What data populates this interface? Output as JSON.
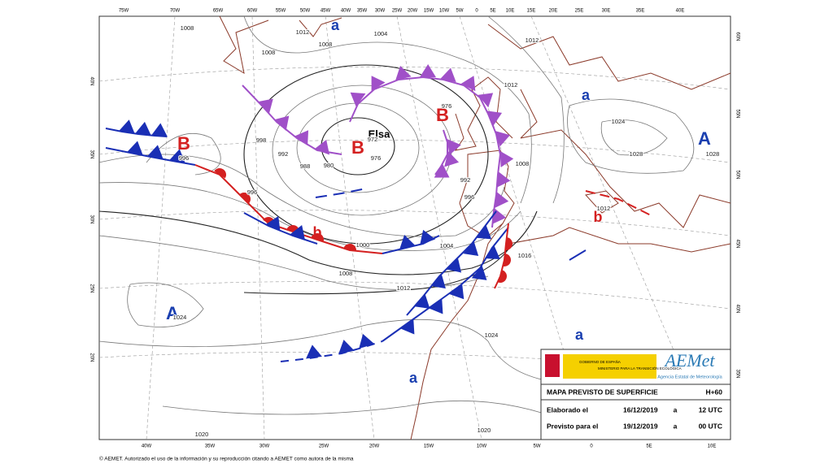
{
  "map": {
    "pressure_centers": [
      "B",
      "B",
      "B",
      "b",
      "b",
      "A",
      "A",
      "a",
      "a",
      "a",
      "a"
    ],
    "storm_name": "Elsa",
    "isobar_labels": [
      "1008",
      "1012",
      "1004",
      "1008",
      "1008",
      "1012",
      "1012",
      "1024",
      "1028",
      "1028",
      "998",
      "992",
      "988",
      "980",
      "976",
      "972",
      "996",
      "996",
      "996",
      "992",
      "1000",
      "1004",
      "1008",
      "1012",
      "1016",
      "1012",
      "1024",
      "1024",
      "1020",
      "1020",
      "976",
      "1008"
    ],
    "longitude_labels_top": [
      "75W",
      "70W",
      "65W",
      "60W",
      "55W",
      "50W",
      "45W",
      "40W",
      "35W",
      "30W",
      "25W",
      "20W",
      "15W",
      "10W",
      "5W",
      "0",
      "5E",
      "10E",
      "15E",
      "20E",
      "25E",
      "30E",
      "35E",
      "40E"
    ],
    "longitude_labels_bottom": [
      "40W",
      "35W",
      "30W",
      "25W",
      "20W",
      "15W",
      "10W",
      "5W",
      "0",
      "5E",
      "10E"
    ],
    "latitude_labels_left": [
      "40N",
      "35N",
      "30N",
      "25N",
      "20N"
    ],
    "latitude_labels_right": [
      "60N",
      "55N",
      "50N",
      "45N",
      "40N",
      "35N"
    ]
  },
  "info_box": {
    "government": "GOBIERNO DE ESPAÑA",
    "ministry": "MINISTERIO PARA LA TRANSICIÓN ECOLÓGICA",
    "logo": "AEMet",
    "logo_subtitle": "Agencia Estatal de Meteorología",
    "title": "MAPA PREVISTO DE SUPERFICIE",
    "lead_time": "H+60",
    "rows": [
      [
        "Elaborado el",
        "16/12/2019",
        "a",
        "12 UTC"
      ],
      [
        "Previsto para el",
        "19/12/2019",
        "a",
        "00 UTC"
      ]
    ]
  },
  "footer": "© AEMET. Autorizado el uso de la información y su reproducción citando a AEMET como autora de la misma"
}
